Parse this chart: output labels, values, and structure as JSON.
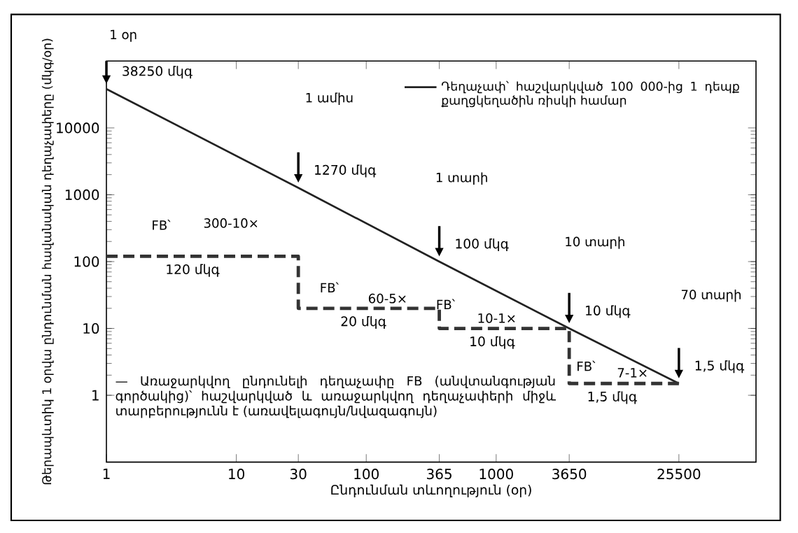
{
  "chart_data": {
    "type": "line",
    "xlabel": "Ընդունման տևողություն (օր)",
    "ylabel": "Թերապևտիկ 1 օրվա ընդունման հավանական դեղաչափերը (մկգ/օր)",
    "log": "xy",
    "grid": false,
    "legend": "top right",
    "marker": "none",
    "xlim": [
      1,
      100000
    ],
    "xticks": [
      1,
      10,
      30,
      100,
      365,
      1000,
      3650,
      25500
    ],
    "ylim": [
      0.1,
      100000
    ],
    "yticks": [
      1,
      10,
      100,
      1000,
      10000
    ],
    "series": [
      {
        "name": "Դեղաչափ՝ հաշվարկված 100 000-ից 1 դեպք քաղցկեղածին ռիսկի համար",
        "color": "#222222",
        "line_style": "solid",
        "x": [
          1,
          30,
          365,
          3650,
          25500
        ],
        "values": [
          38250,
          1270,
          100,
          10,
          1.5
        ]
      },
      {
        "type": "step",
        "color": "#333333",
        "line_style": "dashed",
        "x": [
          1,
          30,
          365,
          3650,
          25500
        ],
        "values": [
          120,
          20,
          10,
          1.5,
          1.5
        ]
      }
    ],
    "annotations": [
      "1 օր",
      "1 ամիս",
      "1 տարի",
      "10 տարի",
      "70 տարի",
      "FB՝",
      "300-10×",
      "FB՝",
      "60-5×",
      "FB՝",
      "10-1×",
      "FB՝",
      "7-1×",
      {
        "text": "38250 մկգ",
        "x": 1,
        "y": 38250
      },
      {
        "text": "1270 մկգ",
        "x": 30,
        "y": 1270
      },
      {
        "text": "100 մկգ",
        "x": 365,
        "y": 100
      },
      {
        "text": "10 մկգ",
        "x": 3650,
        "y": 10
      },
      {
        "text": "1,5 մկգ",
        "x": 25500,
        "y": 1.5
      },
      {
        "text": "120 մկգ",
        "x": 4.6,
        "y": 120
      },
      {
        "text": "20 մկգ",
        "x": 95,
        "y": 20
      },
      {
        "text": "10 մկգ",
        "x": 930,
        "y": 10
      },
      {
        "text": "1,5 մկգ",
        "x": 7800,
        "y": 1.5
      },
      "— Առաջարկվող ընդունելի դեղաչափը FB (անվտանգության գործակից)՝ հաշվարկված և առաջարկվող դեղաչափերի միջև տարբերությունն է (առավելագույն/նվազագույն)"
    ]
  }
}
